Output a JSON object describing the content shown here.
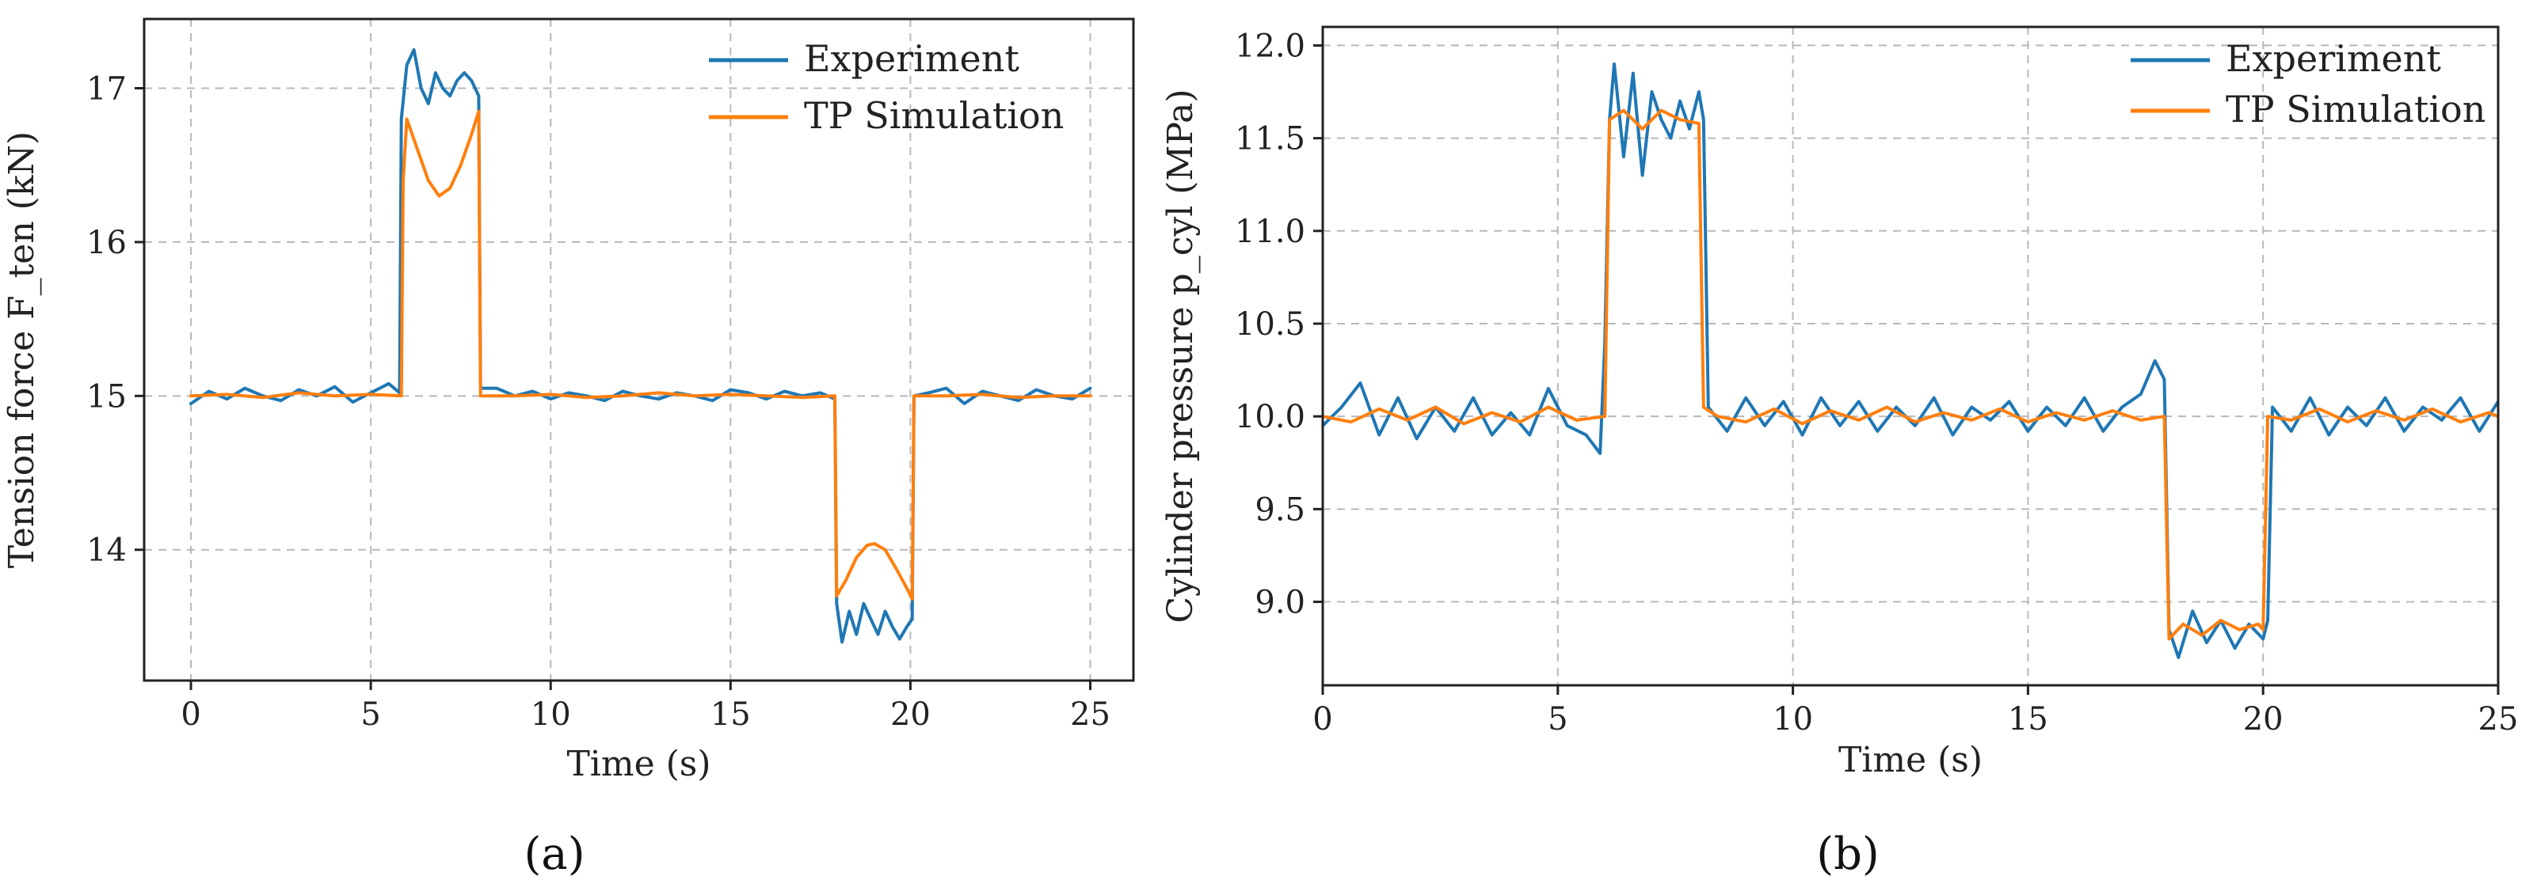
{
  "chart_data": [
    {
      "type": "line",
      "panel_label": "(a)",
      "xlabel": "Time (s)",
      "ylabel": "Tension force F_ten (kN)",
      "xlim": [
        -1.3,
        26.2
      ],
      "ylim": [
        13.15,
        17.45
      ],
      "xticks": [
        0,
        5,
        10,
        15,
        20,
        25
      ],
      "yticks": [
        14,
        15,
        16,
        17
      ],
      "grid": true,
      "legend_position": "top-right",
      "legend": [
        "Experiment",
        "TP Simulation"
      ],
      "series": [
        {
          "name": "Experiment",
          "color": "#1f77b4",
          "x": [
            0,
            0.5,
            1,
            1.5,
            2,
            2.5,
            3,
            3.5,
            4,
            4.5,
            5,
            5.5,
            5.8,
            5.85,
            6.0,
            6.2,
            6.4,
            6.6,
            6.8,
            7.0,
            7.2,
            7.4,
            7.6,
            7.8,
            8.0,
            8.05,
            8.5,
            9,
            9.5,
            10,
            10.5,
            11,
            11.5,
            12,
            12.5,
            13,
            13.5,
            14,
            14.5,
            15,
            15.5,
            16,
            16.5,
            17,
            17.5,
            17.9,
            17.95,
            18.1,
            18.3,
            18.5,
            18.7,
            18.9,
            19.1,
            19.3,
            19.5,
            19.7,
            19.9,
            20.05,
            20.1,
            20.5,
            21,
            21.5,
            22,
            22.5,
            23,
            23.5,
            24,
            24.5,
            25
          ],
          "y": [
            14.95,
            15.03,
            14.98,
            15.05,
            15.0,
            14.97,
            15.04,
            15.0,
            15.06,
            14.96,
            15.02,
            15.08,
            15.02,
            16.8,
            17.15,
            17.25,
            17.0,
            16.9,
            17.1,
            17.0,
            16.95,
            17.05,
            17.1,
            17.05,
            16.95,
            15.05,
            15.05,
            15.0,
            15.03,
            14.98,
            15.02,
            15.0,
            14.97,
            15.03,
            15.0,
            14.98,
            15.02,
            15.0,
            14.97,
            15.04,
            15.02,
            14.98,
            15.03,
            15.0,
            15.02,
            14.98,
            13.65,
            13.4,
            13.6,
            13.45,
            13.65,
            13.55,
            13.45,
            13.6,
            13.5,
            13.42,
            13.5,
            13.55,
            15.0,
            15.02,
            15.05,
            14.95,
            15.03,
            15.0,
            14.97,
            15.04,
            15.0,
            14.98,
            15.05
          ]
        },
        {
          "name": "TP Simulation",
          "color": "#ff7f0e",
          "x": [
            0,
            1,
            2,
            3,
            4,
            5,
            5.85,
            5.9,
            6.0,
            6.3,
            6.6,
            6.9,
            7.2,
            7.5,
            7.8,
            8.0,
            8.05,
            9,
            10,
            11,
            12,
            13,
            14,
            15,
            16,
            17,
            17.9,
            17.95,
            18.2,
            18.5,
            18.8,
            19.0,
            19.3,
            19.6,
            19.9,
            20.05,
            20.1,
            21,
            22,
            23,
            24,
            25
          ],
          "y": [
            15.0,
            15.01,
            14.99,
            15.02,
            15.0,
            15.01,
            15.0,
            16.4,
            16.8,
            16.6,
            16.4,
            16.3,
            16.35,
            16.5,
            16.7,
            16.85,
            15.0,
            15.0,
            15.01,
            14.99,
            15.0,
            15.02,
            15.0,
            15.01,
            15.0,
            14.99,
            15.0,
            13.7,
            13.8,
            13.95,
            14.03,
            14.04,
            14.0,
            13.88,
            13.75,
            13.68,
            15.0,
            15.0,
            15.01,
            14.99,
            15.0,
            15.0
          ]
        }
      ]
    },
    {
      "type": "line",
      "panel_label": "(b)",
      "xlabel": "Time (s)",
      "ylabel": "Cylinder pressure p_cyl (MPa)",
      "xlim": [
        0,
        25
      ],
      "ylim": [
        8.55,
        12.1
      ],
      "xticks": [
        0,
        5,
        10,
        15,
        20,
        25
      ],
      "yticks": [
        9.0,
        9.5,
        10.0,
        10.5,
        11.0,
        11.5,
        12.0
      ],
      "grid": true,
      "legend_position": "top-right",
      "legend": [
        "Experiment",
        "TP Simulation"
      ],
      "series": [
        {
          "name": "Experiment",
          "color": "#1f77b4",
          "x": [
            0,
            0.4,
            0.8,
            1.2,
            1.6,
            2.0,
            2.4,
            2.8,
            3.2,
            3.6,
            4.0,
            4.4,
            4.8,
            5.2,
            5.6,
            5.9,
            6.0,
            6.1,
            6.2,
            6.4,
            6.6,
            6.8,
            7.0,
            7.2,
            7.4,
            7.6,
            7.8,
            8.0,
            8.1,
            8.2,
            8.6,
            9.0,
            9.4,
            9.8,
            10.2,
            10.6,
            11.0,
            11.4,
            11.8,
            12.2,
            12.6,
            13.0,
            13.4,
            13.8,
            14.2,
            14.6,
            15.0,
            15.4,
            15.8,
            16.2,
            16.6,
            17.0,
            17.4,
            17.7,
            17.9,
            18.0,
            18.2,
            18.5,
            18.8,
            19.1,
            19.4,
            19.7,
            20.0,
            20.1,
            20.2,
            20.6,
            21.0,
            21.4,
            21.8,
            22.2,
            22.6,
            23.0,
            23.4,
            23.8,
            24.2,
            24.6,
            25.0
          ],
          "y": [
            9.95,
            10.05,
            10.18,
            9.9,
            10.1,
            9.88,
            10.05,
            9.92,
            10.1,
            9.9,
            10.02,
            9.9,
            10.15,
            9.95,
            9.9,
            9.8,
            10.4,
            11.6,
            11.9,
            11.4,
            11.85,
            11.3,
            11.75,
            11.6,
            11.5,
            11.7,
            11.55,
            11.75,
            11.6,
            10.05,
            9.92,
            10.1,
            9.95,
            10.08,
            9.9,
            10.1,
            9.95,
            10.08,
            9.92,
            10.05,
            9.95,
            10.1,
            9.9,
            10.05,
            9.98,
            10.08,
            9.92,
            10.05,
            9.95,
            10.1,
            9.92,
            10.05,
            10.12,
            10.3,
            10.2,
            8.85,
            8.7,
            8.95,
            8.78,
            8.9,
            8.75,
            8.88,
            8.8,
            8.9,
            10.05,
            9.92,
            10.1,
            9.9,
            10.05,
            9.95,
            10.1,
            9.92,
            10.05,
            9.98,
            10.1,
            9.92,
            10.08
          ]
        },
        {
          "name": "TP Simulation",
          "color": "#ff7f0e",
          "x": [
            0,
            0.6,
            1.2,
            1.8,
            2.4,
            3.0,
            3.6,
            4.2,
            4.8,
            5.4,
            6.0,
            6.1,
            6.4,
            6.8,
            7.2,
            7.6,
            8.0,
            8.1,
            8.4,
            9.0,
            9.6,
            10.2,
            10.8,
            11.4,
            12.0,
            12.6,
            13.2,
            13.8,
            14.4,
            15.0,
            15.6,
            16.2,
            16.8,
            17.4,
            17.9,
            18.0,
            18.3,
            18.7,
            19.1,
            19.5,
            19.9,
            20.0,
            20.1,
            20.6,
            21.2,
            21.8,
            22.4,
            23.0,
            23.6,
            24.2,
            24.8,
            25.0
          ],
          "y": [
            10.0,
            9.97,
            10.04,
            9.98,
            10.05,
            9.96,
            10.02,
            9.97,
            10.05,
            9.98,
            10.0,
            11.6,
            11.65,
            11.55,
            11.65,
            11.6,
            11.58,
            10.05,
            10.0,
            9.97,
            10.04,
            9.96,
            10.03,
            9.98,
            10.05,
            9.97,
            10.02,
            9.98,
            10.04,
            9.97,
            10.02,
            9.98,
            10.03,
            9.98,
            10.0,
            8.8,
            8.88,
            8.82,
            8.9,
            8.85,
            8.88,
            8.85,
            10.0,
            9.98,
            10.04,
            9.97,
            10.03,
            9.98,
            10.04,
            9.97,
            10.02,
            10.0
          ]
        }
      ]
    }
  ]
}
